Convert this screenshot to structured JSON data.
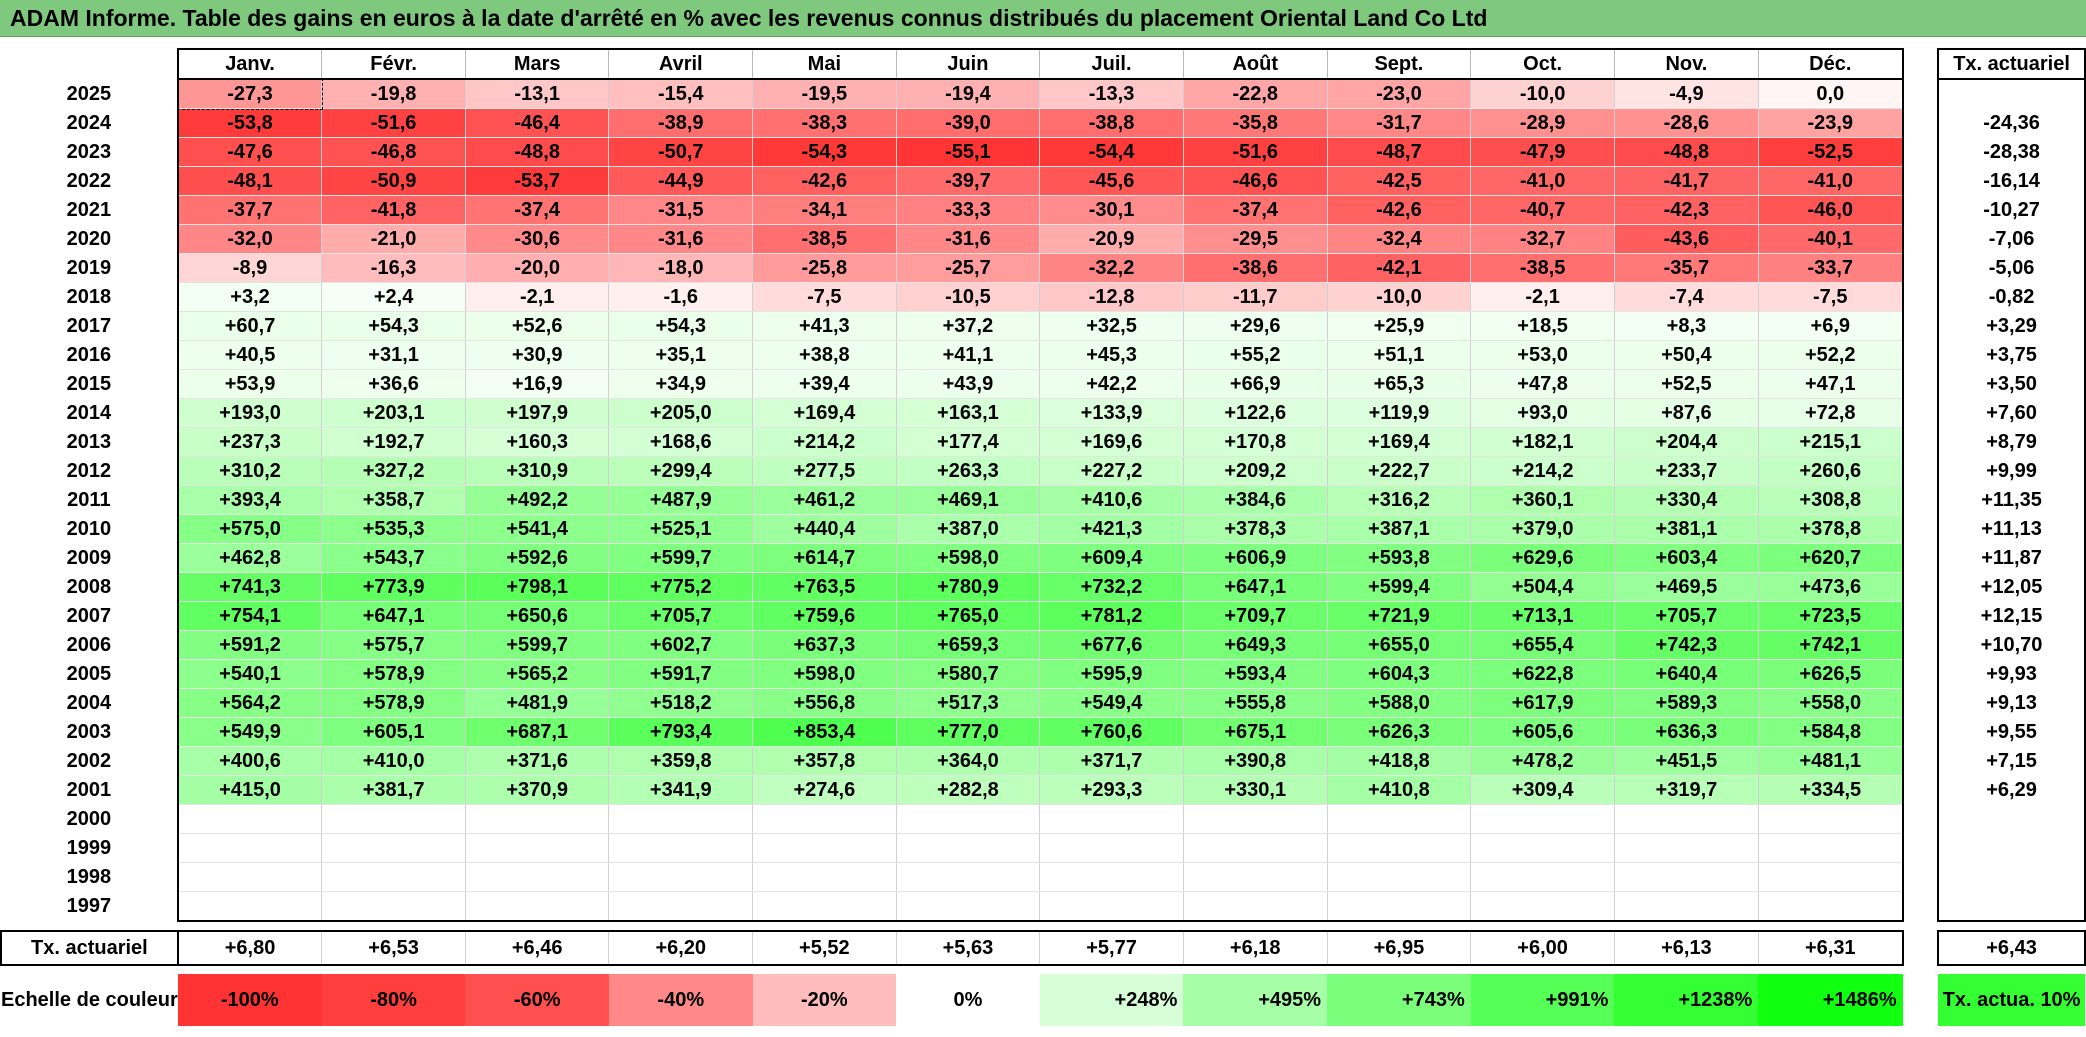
{
  "title": "ADAM Informe. Table des gains en euros à la date d'arrêté en % avec les revenus connus distribués du placement Oriental Land Co Ltd",
  "chart_data": {
    "type": "heatmap",
    "title": "ADAM Informe. Table des gains en euros à la date d'arrêté en % avec les revenus connus distribués du placement Oriental Land Co Ltd",
    "months": [
      "Janv.",
      "Févr.",
      "Mars",
      "Avril",
      "Mai",
      "Juin",
      "Juil.",
      "Août",
      "Sept.",
      "Oct.",
      "Nov.",
      "Déc."
    ],
    "rate_header": "Tx. actuariel",
    "rows": [
      {
        "year": "2025",
        "values": [
          "-27,3",
          "-19,8",
          "-13,1",
          "-15,4",
          "-19,5",
          "-19,4",
          "-13,3",
          "-22,8",
          "-23,0",
          "-10,0",
          "-4,9",
          "0,0"
        ],
        "rate": ""
      },
      {
        "year": "2024",
        "values": [
          "-53,8",
          "-51,6",
          "-46,4",
          "-38,9",
          "-38,3",
          "-39,0",
          "-38,8",
          "-35,8",
          "-31,7",
          "-28,9",
          "-28,6",
          "-23,9"
        ],
        "rate": "-24,36"
      },
      {
        "year": "2023",
        "values": [
          "-47,6",
          "-46,8",
          "-48,8",
          "-50,7",
          "-54,3",
          "-55,1",
          "-54,4",
          "-51,6",
          "-48,7",
          "-47,9",
          "-48,8",
          "-52,5"
        ],
        "rate": "-28,38"
      },
      {
        "year": "2022",
        "values": [
          "-48,1",
          "-50,9",
          "-53,7",
          "-44,9",
          "-42,6",
          "-39,7",
          "-45,6",
          "-46,6",
          "-42,5",
          "-41,0",
          "-41,7",
          "-41,0"
        ],
        "rate": "-16,14"
      },
      {
        "year": "2021",
        "values": [
          "-37,7",
          "-41,8",
          "-37,4",
          "-31,5",
          "-34,1",
          "-33,3",
          "-30,1",
          "-37,4",
          "-42,6",
          "-40,7",
          "-42,3",
          "-46,0"
        ],
        "rate": "-10,27"
      },
      {
        "year": "2020",
        "values": [
          "-32,0",
          "-21,0",
          "-30,6",
          "-31,6",
          "-38,5",
          "-31,6",
          "-20,9",
          "-29,5",
          "-32,4",
          "-32,7",
          "-43,6",
          "-40,1"
        ],
        "rate": "-7,06"
      },
      {
        "year": "2019",
        "values": [
          "-8,9",
          "-16,3",
          "-20,0",
          "-18,0",
          "-25,8",
          "-25,7",
          "-32,2",
          "-38,6",
          "-42,1",
          "-38,5",
          "-35,7",
          "-33,7"
        ],
        "rate": "-5,06"
      },
      {
        "year": "2018",
        "values": [
          "+3,2",
          "+2,4",
          "-2,1",
          "-1,6",
          "-7,5",
          "-10,5",
          "-12,8",
          "-11,7",
          "-10,0",
          "-2,1",
          "-7,4",
          "-7,5"
        ],
        "rate": "-0,82"
      },
      {
        "year": "2017",
        "values": [
          "+60,7",
          "+54,3",
          "+52,6",
          "+54,3",
          "+41,3",
          "+37,2",
          "+32,5",
          "+29,6",
          "+25,9",
          "+18,5",
          "+8,3",
          "+6,9"
        ],
        "rate": "+3,29"
      },
      {
        "year": "2016",
        "values": [
          "+40,5",
          "+31,1",
          "+30,9",
          "+35,1",
          "+38,8",
          "+41,1",
          "+45,3",
          "+55,2",
          "+51,1",
          "+53,0",
          "+50,4",
          "+52,2"
        ],
        "rate": "+3,75"
      },
      {
        "year": "2015",
        "values": [
          "+53,9",
          "+36,6",
          "+16,9",
          "+34,9",
          "+39,4",
          "+43,9",
          "+42,2",
          "+66,9",
          "+65,3",
          "+47,8",
          "+52,5",
          "+47,1"
        ],
        "rate": "+3,50"
      },
      {
        "year": "2014",
        "values": [
          "+193,0",
          "+203,1",
          "+197,9",
          "+205,0",
          "+169,4",
          "+163,1",
          "+133,9",
          "+122,6",
          "+119,9",
          "+93,0",
          "+87,6",
          "+72,8"
        ],
        "rate": "+7,60"
      },
      {
        "year": "2013",
        "values": [
          "+237,3",
          "+192,7",
          "+160,3",
          "+168,6",
          "+214,2",
          "+177,4",
          "+169,6",
          "+170,8",
          "+169,4",
          "+182,1",
          "+204,4",
          "+215,1"
        ],
        "rate": "+8,79"
      },
      {
        "year": "2012",
        "values": [
          "+310,2",
          "+327,2",
          "+310,9",
          "+299,4",
          "+277,5",
          "+263,3",
          "+227,2",
          "+209,2",
          "+222,7",
          "+214,2",
          "+233,7",
          "+260,6"
        ],
        "rate": "+9,99"
      },
      {
        "year": "2011",
        "values": [
          "+393,4",
          "+358,7",
          "+492,2",
          "+487,9",
          "+461,2",
          "+469,1",
          "+410,6",
          "+384,6",
          "+316,2",
          "+360,1",
          "+330,4",
          "+308,8"
        ],
        "rate": "+11,35"
      },
      {
        "year": "2010",
        "values": [
          "+575,0",
          "+535,3",
          "+541,4",
          "+525,1",
          "+440,4",
          "+387,0",
          "+421,3",
          "+378,3",
          "+387,1",
          "+379,0",
          "+381,1",
          "+378,8"
        ],
        "rate": "+11,13"
      },
      {
        "year": "2009",
        "values": [
          "+462,8",
          "+543,7",
          "+592,6",
          "+599,7",
          "+614,7",
          "+598,0",
          "+609,4",
          "+606,9",
          "+593,8",
          "+629,6",
          "+603,4",
          "+620,7"
        ],
        "rate": "+11,87"
      },
      {
        "year": "2008",
        "values": [
          "+741,3",
          "+773,9",
          "+798,1",
          "+775,2",
          "+763,5",
          "+780,9",
          "+732,2",
          "+647,1",
          "+599,4",
          "+504,4",
          "+469,5",
          "+473,6"
        ],
        "rate": "+12,05"
      },
      {
        "year": "2007",
        "values": [
          "+754,1",
          "+647,1",
          "+650,6",
          "+705,7",
          "+759,6",
          "+765,0",
          "+781,2",
          "+709,7",
          "+721,9",
          "+713,1",
          "+705,7",
          "+723,5"
        ],
        "rate": "+12,15"
      },
      {
        "year": "2006",
        "values": [
          "+591,2",
          "+575,7",
          "+599,7",
          "+602,7",
          "+637,3",
          "+659,3",
          "+677,6",
          "+649,3",
          "+655,0",
          "+655,4",
          "+742,3",
          "+742,1"
        ],
        "rate": "+10,70"
      },
      {
        "year": "2005",
        "values": [
          "+540,1",
          "+578,9",
          "+565,2",
          "+591,7",
          "+598,0",
          "+580,7",
          "+595,9",
          "+593,4",
          "+604,3",
          "+622,8",
          "+640,4",
          "+626,5"
        ],
        "rate": "+9,93"
      },
      {
        "year": "2004",
        "values": [
          "+564,2",
          "+578,9",
          "+481,9",
          "+518,2",
          "+556,8",
          "+517,3",
          "+549,4",
          "+555,8",
          "+588,0",
          "+617,9",
          "+589,3",
          "+558,0"
        ],
        "rate": "+9,13"
      },
      {
        "year": "2003",
        "values": [
          "+549,9",
          "+605,1",
          "+687,1",
          "+793,4",
          "+853,4",
          "+777,0",
          "+760,6",
          "+675,1",
          "+626,3",
          "+605,6",
          "+636,3",
          "+584,8"
        ],
        "rate": "+9,55"
      },
      {
        "year": "2002",
        "values": [
          "+400,6",
          "+410,0",
          "+371,6",
          "+359,8",
          "+357,8",
          "+364,0",
          "+371,7",
          "+390,8",
          "+418,8",
          "+478,2",
          "+451,5",
          "+481,1"
        ],
        "rate": "+7,15"
      },
      {
        "year": "2001",
        "values": [
          "+415,0",
          "+381,7",
          "+370,9",
          "+341,9",
          "+274,6",
          "+282,8",
          "+293,3",
          "+330,1",
          "+410,8",
          "+309,4",
          "+319,7",
          "+334,5"
        ],
        "rate": "+6,29"
      },
      {
        "year": "2000",
        "values": [
          "",
          "",
          "",
          "",
          "",
          "",
          "",
          "",
          "",
          "",
          "",
          ""
        ],
        "rate": ""
      },
      {
        "year": "1999",
        "values": [
          "",
          "",
          "",
          "",
          "",
          "",
          "",
          "",
          "",
          "",
          "",
          ""
        ],
        "rate": ""
      },
      {
        "year": "1998",
        "values": [
          "",
          "",
          "",
          "",
          "",
          "",
          "",
          "",
          "",
          "",
          "",
          ""
        ],
        "rate": ""
      },
      {
        "year": "1997",
        "values": [
          "",
          "",
          "",
          "",
          "",
          "",
          "",
          "",
          "",
          "",
          "",
          ""
        ],
        "rate": ""
      }
    ],
    "tx_row": {
      "label": "Tx. actuariel",
      "values": [
        "+6,80",
        "+6,53",
        "+6,46",
        "+6,20",
        "+5,52",
        "+5,63",
        "+5,77",
        "+6,18",
        "+6,95",
        "+6,00",
        "+6,13",
        "+6,31"
      ],
      "overall": "+6,43"
    },
    "scale": {
      "label": "Echelle de couleur",
      "steps": [
        {
          "text": "-100%",
          "value": -100,
          "color": "#ff3333"
        },
        {
          "text": "-80%",
          "value": -80,
          "color": "#ff3e3e"
        },
        {
          "text": "-60%",
          "value": -60,
          "color": "#ff4f4f"
        },
        {
          "text": "-40%",
          "value": -40,
          "color": "#ff8888"
        },
        {
          "text": "-20%",
          "value": -20,
          "color": "#ffbcbc"
        },
        {
          "text": "0%",
          "value": 0,
          "color": "#ffffff"
        },
        {
          "text": "+248%",
          "value": 248,
          "color": "#d7ffd7"
        },
        {
          "text": "+495%",
          "value": 495,
          "color": "#a6ffa6"
        },
        {
          "text": "+743%",
          "value": 743,
          "color": "#7bff7b"
        },
        {
          "text": "+991%",
          "value": 991,
          "color": "#55ff55"
        },
        {
          "text": "+1238%",
          "value": 1238,
          "color": "#33ff33"
        },
        {
          "text": "+1486%",
          "value": 1486,
          "color": "#11ff11"
        }
      ],
      "rate_box": "Tx. actua. 10%",
      "rate_box_color": "#33ff33"
    }
  }
}
